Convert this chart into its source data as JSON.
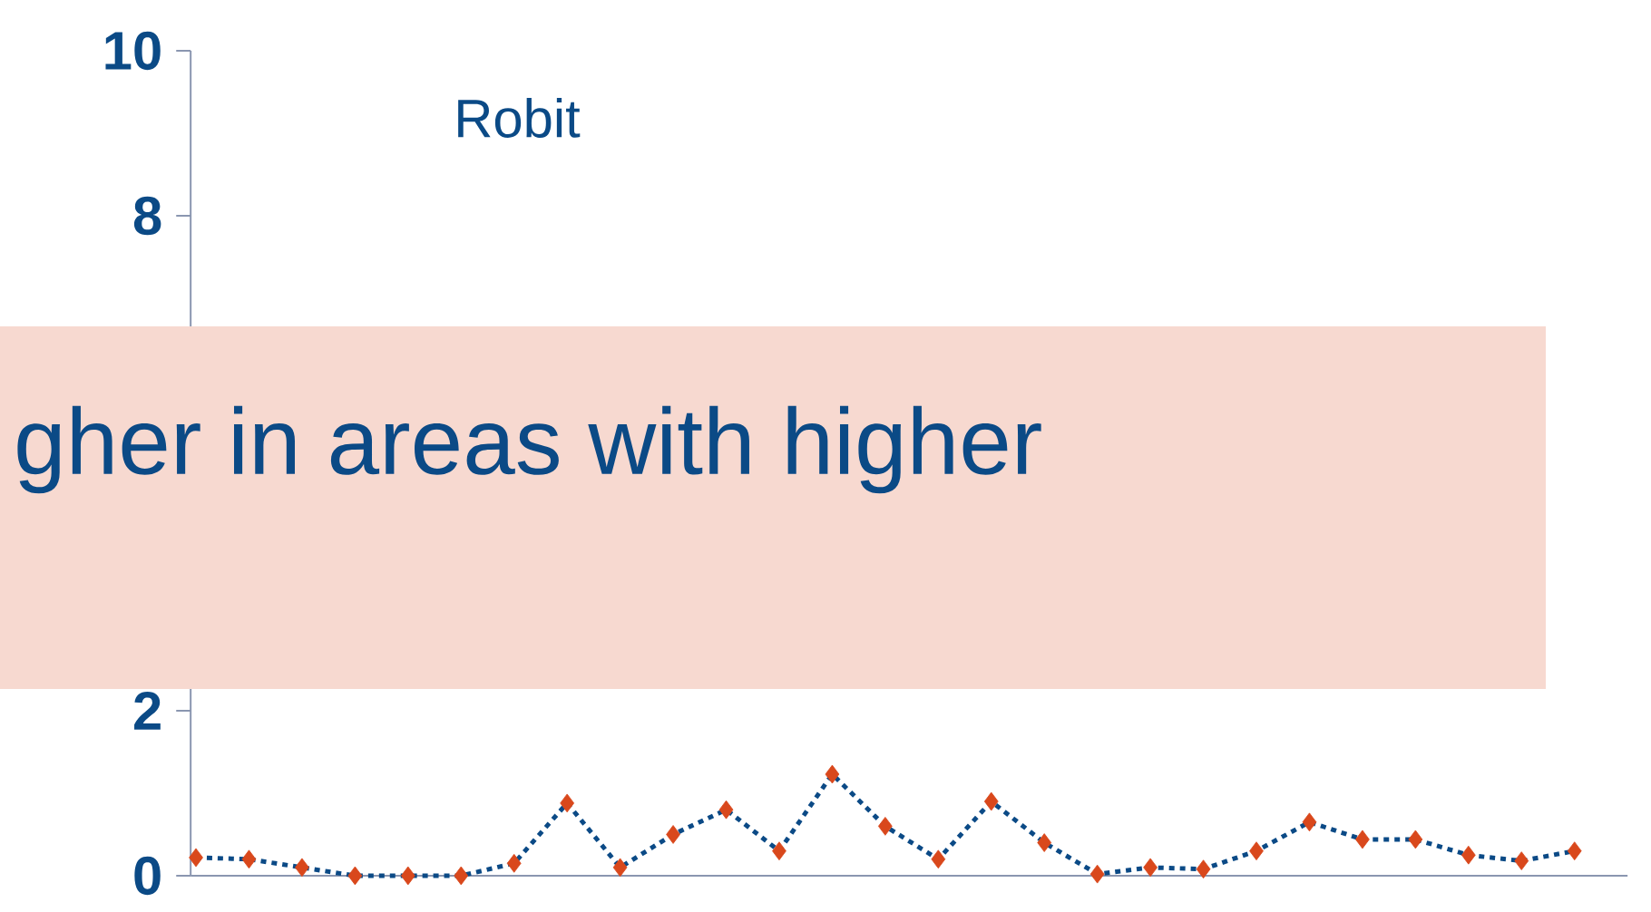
{
  "chart_data": {
    "type": "line",
    "title": "Robit",
    "annotations": [
      "gher in areas with higher"
    ],
    "categories": [
      null,
      null,
      null,
      null,
      null,
      null,
      null,
      null,
      null,
      null,
      null,
      null,
      null,
      null,
      null,
      null,
      null,
      null,
      null,
      null,
      null,
      null,
      null,
      null,
      null,
      null,
      null
    ],
    "series": [
      {
        "color": "#0b4a86",
        "colors": [
          "#d9481c",
          "#d9481c",
          "#d9481c",
          "#d9481c",
          "#d9481c",
          "#d9481c",
          "#d9481c",
          "#d9481c",
          "#d9481c",
          "#d9481c",
          "#d9481c",
          "#d9481c",
          "#d9481c",
          "#d9481c",
          "#d9481c",
          "#d9481c",
          "#d9481c",
          "#d9481c",
          "#d9481c",
          "#d9481c",
          "#d9481c",
          "#d9481c",
          "#d9481c",
          "#d9481c",
          "#d9481c",
          "#d9481c",
          "#d9481c"
        ],
        "values": [
          0.22,
          0.2,
          0.1,
          0,
          0,
          0,
          0.15,
          0.88,
          0.1,
          0.5,
          0.8,
          0.3,
          1.23,
          0.6,
          0.2,
          0.9,
          0.4,
          0.02,
          0.1,
          0.08,
          0.3,
          0.65,
          0.44,
          0.44,
          0.25,
          0.18,
          0.3
        ]
      }
    ],
    "ylim": [
      0,
      10
    ],
    "yticks": [
      0,
      2,
      8,
      10
    ],
    "marker": "diamond",
    "line_style": "dashed",
    "tick_labels": "y"
  }
}
